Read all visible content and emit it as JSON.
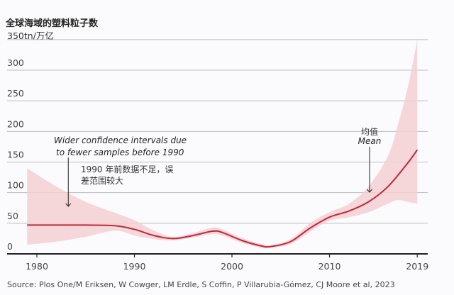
{
  "chart_data": {
    "type": "line",
    "title": "全球海域的塑料粒子数",
    "ylabel": "350tn/万亿",
    "xlabel": "",
    "ylim": [
      0,
      350
    ],
    "xlim": [
      1979,
      2019
    ],
    "grid": true,
    "yticks": [
      0,
      50,
      100,
      150,
      200,
      250,
      300
    ],
    "xticks": [
      1980,
      1990,
      2000,
      2010,
      2019
    ],
    "colors": {
      "mean": "#c0283a",
      "band": "#f3cfd2",
      "grid": "#bdbdbd",
      "axis": "#222222"
    },
    "series": [
      {
        "name": "Mean",
        "x": [
          1979,
          1980,
          1985,
          1988,
          1990,
          1992,
          1994,
          1996,
          1998,
          1999,
          2001,
          2003,
          2004,
          2006,
          2008,
          2010,
          2012,
          2014,
          2016,
          2018,
          2019
        ],
        "values": [
          47,
          47,
          47,
          46,
          40,
          30,
          25,
          30,
          37,
          35,
          22,
          13,
          12,
          20,
          42,
          60,
          70,
          85,
          110,
          148,
          170
        ]
      }
    ],
    "confidence_band": {
      "x": [
        1979,
        1982,
        1985,
        1988,
        1990,
        1992,
        1994,
        1996,
        1998,
        1999,
        2001,
        2003,
        2004,
        2006,
        2008,
        2010,
        2012,
        2014,
        2016,
        2017,
        2018,
        2019
      ],
      "upper": [
        140,
        110,
        85,
        67,
        55,
        38,
        28,
        34,
        43,
        40,
        26,
        16,
        14,
        24,
        50,
        68,
        82,
        110,
        160,
        210,
        270,
        350
      ],
      "lower": [
        15,
        20,
        28,
        38,
        30,
        24,
        22,
        27,
        32,
        30,
        18,
        10,
        10,
        16,
        36,
        54,
        60,
        68,
        82,
        88,
        85,
        82
      ]
    },
    "annotations": [
      {
        "text_en_line1": "Wider confidence intervals due",
        "text_en_line2": "to fewer samples before 1990",
        "text_cn_line1": "1990 年前数据不足，误",
        "text_cn_line2": "差范围较大",
        "arrow_to": {
          "x": 1983,
          "y": 47
        }
      },
      {
        "text_cn": "均值",
        "text_en": "Mean",
        "arrow_to": {
          "x": 2014.5,
          "y": 85
        }
      }
    ]
  },
  "source": "Source: Plos One/M Eriksen, W Cowger, LM Erdle, S Coffin, P Villarubia-Gómez, CJ Moore et al, 2023"
}
